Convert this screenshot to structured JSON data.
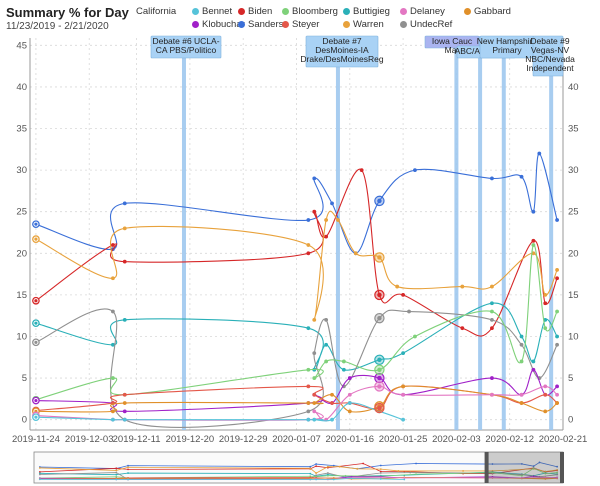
{
  "header": {
    "title": "Summary % for Day",
    "subtitle": "11/23/2019 - 2/21/2020"
  },
  "legend": {
    "title": "California",
    "items": [
      {
        "name": "Bennet",
        "color": "#56c3d9"
      },
      {
        "name": "Biden",
        "color": "#d62728"
      },
      {
        "name": "Bloomberg",
        "color": "#7fd17a"
      },
      {
        "name": "Buttigieg",
        "color": "#2ab0b8"
      },
      {
        "name": "Delaney",
        "color": "#e377c2"
      },
      {
        "name": "Gabbard",
        "color": "#e0902a"
      },
      {
        "name": "Klobuchar",
        "color": "#a020c8"
      },
      {
        "name": "Sanders",
        "color": "#3a6fd8"
      },
      {
        "name": "Steyer",
        "color": "#e4584a"
      },
      {
        "name": "Warren",
        "color": "#e8a23c"
      },
      {
        "name": "UndecRef",
        "color": "#909090"
      }
    ]
  },
  "chart_data": {
    "type": "line",
    "title": "Summary % for Day",
    "subtitle": "11/23/2019 - 2/21/2020",
    "xlabel": "",
    "ylabel": "",
    "x_type": "date",
    "xlim": [
      "2019-11-23",
      "2020-02-21"
    ],
    "ylim": [
      -1,
      46
    ],
    "y_ticks": [
      0,
      5,
      10,
      15,
      20,
      25,
      30,
      35,
      40,
      45
    ],
    "y_ticks_right": [
      0,
      5,
      10,
      15,
      20,
      25,
      30,
      35,
      40
    ],
    "x_ticks": [
      "2019-11-24",
      "2019-12-03",
      "2019-12-11",
      "2019-12-20",
      "2019-12-29",
      "2020-01-07",
      "2020-01-16",
      "2020-01-25",
      "2020-02-03",
      "2020-02-12",
      "2020-02-21"
    ],
    "grid": true,
    "events": [
      {
        "date": "2019-12-19",
        "lines": [
          "Debate #6 UCLA-",
          "CA PBS/Politico"
        ]
      },
      {
        "date": "2020-01-14",
        "lines": [
          "Debate #7",
          "DesMoines-IA",
          "Drake/DesMoinesReg"
        ]
      },
      {
        "date": "2020-02-03",
        "lines": [
          "Iowa Cauc",
          "Mar"
        ]
      },
      {
        "date": "2020-02-07",
        "lines": [
          "ABC/AppleNews"
        ]
      },
      {
        "date": "2020-02-11",
        "lines": [
          "New Hampshire",
          "Primary"
        ]
      },
      {
        "date": "2020-02-19",
        "lines": [
          "Debate #9",
          "Vegas-NV",
          "NBC/Nevada",
          "Independent"
        ]
      }
    ],
    "series": [
      {
        "name": "Sanders",
        "color": "#3a6fd8",
        "points": [
          [
            "2019-11-24",
            23.5
          ],
          [
            "2019-12-07",
            20.5
          ],
          [
            "2019-12-09",
            26
          ],
          [
            "2020-01-09",
            24
          ],
          [
            "2020-01-10",
            29
          ],
          [
            "2020-01-13",
            26
          ],
          [
            "2020-01-17",
            20
          ],
          [
            "2020-01-21",
            26.3
          ],
          [
            "2020-01-27",
            30
          ],
          [
            "2020-02-09",
            29
          ],
          [
            "2020-02-14",
            29.2
          ],
          [
            "2020-02-16",
            25
          ],
          [
            "2020-02-17",
            32
          ],
          [
            "2020-02-20",
            24
          ]
        ]
      },
      {
        "name": "Biden",
        "color": "#d62728",
        "points": [
          [
            "2019-11-24",
            14.3
          ],
          [
            "2019-12-07",
            21
          ],
          [
            "2019-12-09",
            19
          ],
          [
            "2020-01-09",
            20
          ],
          [
            "2020-01-10",
            25
          ],
          [
            "2020-01-12",
            22
          ],
          [
            "2020-01-18",
            30
          ],
          [
            "2020-01-21",
            15
          ],
          [
            "2020-01-25",
            15
          ],
          [
            "2020-02-04",
            11
          ],
          [
            "2020-02-09",
            11
          ],
          [
            "2020-02-16",
            21.5
          ],
          [
            "2020-02-18",
            14
          ],
          [
            "2020-02-20",
            17
          ]
        ]
      },
      {
        "name": "Warren",
        "color": "#e8a23c",
        "points": [
          [
            "2019-11-24",
            21.7
          ],
          [
            "2019-12-07",
            17
          ],
          [
            "2019-12-09",
            23
          ],
          [
            "2020-01-09",
            21
          ],
          [
            "2020-01-10",
            12
          ],
          [
            "2020-01-12",
            24
          ],
          [
            "2020-01-14",
            24
          ],
          [
            "2020-01-17",
            20
          ],
          [
            "2020-01-21",
            19.5
          ],
          [
            "2020-01-24",
            16
          ],
          [
            "2020-02-04",
            16
          ],
          [
            "2020-02-09",
            16
          ],
          [
            "2020-02-16",
            20
          ],
          [
            "2020-02-18",
            15
          ],
          [
            "2020-02-20",
            18
          ]
        ]
      },
      {
        "name": "Buttigieg",
        "color": "#2ab0b8",
        "points": [
          [
            "2019-11-24",
            11.6
          ],
          [
            "2019-12-07",
            9
          ],
          [
            "2019-12-09",
            12
          ],
          [
            "2020-01-09",
            11
          ],
          [
            "2020-01-10",
            6
          ],
          [
            "2020-01-12",
            9
          ],
          [
            "2020-01-15",
            6
          ],
          [
            "2020-01-21",
            7.2
          ],
          [
            "2020-01-25",
            8
          ],
          [
            "2020-02-09",
            14
          ],
          [
            "2020-02-14",
            10
          ],
          [
            "2020-02-16",
            7
          ],
          [
            "2020-02-18",
            12
          ],
          [
            "2020-02-20",
            10
          ]
        ]
      },
      {
        "name": "UndecRef",
        "color": "#909090",
        "points": [
          [
            "2019-11-24",
            9.3
          ],
          [
            "2019-12-07",
            13
          ],
          [
            "2019-12-09",
            0
          ],
          [
            "2020-01-09",
            1
          ],
          [
            "2020-01-10",
            8
          ],
          [
            "2020-01-12",
            12
          ],
          [
            "2020-01-15",
            4
          ],
          [
            "2020-01-21",
            12.2
          ],
          [
            "2020-01-26",
            13
          ],
          [
            "2020-02-09",
            12
          ],
          [
            "2020-02-14",
            9
          ],
          [
            "2020-02-17",
            5
          ],
          [
            "2020-02-20",
            9
          ]
        ]
      },
      {
        "name": "Bloomberg",
        "color": "#7fd17a",
        "points": [
          [
            "2019-11-24",
            2.4
          ],
          [
            "2019-12-07",
            5
          ],
          [
            "2019-12-09",
            3
          ],
          [
            "2020-01-09",
            6
          ],
          [
            "2020-01-10",
            5
          ],
          [
            "2020-01-12",
            7
          ],
          [
            "2020-01-15",
            7
          ],
          [
            "2020-01-21",
            6
          ],
          [
            "2020-01-27",
            10
          ],
          [
            "2020-02-09",
            13
          ],
          [
            "2020-02-14",
            7
          ],
          [
            "2020-02-16",
            21
          ],
          [
            "2020-02-18",
            11
          ],
          [
            "2020-02-20",
            13
          ]
        ]
      },
      {
        "name": "Klobuchar",
        "color": "#a020c8",
        "points": [
          [
            "2019-11-24",
            2.3
          ],
          [
            "2019-12-07",
            2
          ],
          [
            "2019-12-09",
            1
          ],
          [
            "2020-01-09",
            2
          ],
          [
            "2020-01-10",
            3
          ],
          [
            "2020-01-13",
            2
          ],
          [
            "2020-01-16",
            5
          ],
          [
            "2020-01-21",
            5
          ],
          [
            "2020-01-25",
            3
          ],
          [
            "2020-02-09",
            5
          ],
          [
            "2020-02-14",
            3
          ],
          [
            "2020-02-16",
            6
          ],
          [
            "2020-02-18",
            3
          ],
          [
            "2020-02-20",
            4
          ]
        ]
      },
      {
        "name": "Steyer",
        "color": "#e4584a",
        "points": [
          [
            "2019-11-24",
            1.1
          ],
          [
            "2019-12-07",
            2
          ],
          [
            "2019-12-09",
            3
          ],
          [
            "2020-01-09",
            4
          ],
          [
            "2020-01-10",
            3
          ],
          [
            "2020-01-13",
            2
          ],
          [
            "2020-01-16",
            2
          ],
          [
            "2020-01-21",
            1.4
          ],
          [
            "2020-01-25",
            4
          ],
          [
            "2020-02-09",
            3
          ],
          [
            "2020-02-14",
            2
          ],
          [
            "2020-02-18",
            3
          ],
          [
            "2020-02-20",
            2
          ]
        ]
      },
      {
        "name": "Gabbard",
        "color": "#e0902a",
        "points": [
          [
            "2019-11-24",
            1.0
          ],
          [
            "2019-12-07",
            1
          ],
          [
            "2019-12-09",
            2
          ],
          [
            "2020-01-09",
            2
          ],
          [
            "2020-01-10",
            2
          ],
          [
            "2020-01-13",
            3
          ],
          [
            "2020-01-16",
            1
          ],
          [
            "2020-01-21",
            1.6
          ],
          [
            "2020-01-25",
            4
          ],
          [
            "2020-02-09",
            3
          ],
          [
            "2020-02-14",
            2
          ],
          [
            "2020-02-18",
            1
          ],
          [
            "2020-02-20",
            2
          ]
        ]
      },
      {
        "name": "Delaney",
        "color": "#e377c2",
        "points": [
          [
            "2019-11-24",
            0.5
          ],
          [
            "2019-12-07",
            0
          ],
          [
            "2019-12-09",
            0
          ],
          [
            "2020-01-09",
            0
          ],
          [
            "2020-01-10",
            1
          ],
          [
            "2020-01-12",
            0
          ],
          [
            "2020-01-16",
            3
          ],
          [
            "2020-01-21",
            4
          ],
          [
            "2020-01-25",
            3
          ],
          [
            "2020-02-09",
            3
          ],
          [
            "2020-02-14",
            3
          ],
          [
            "2020-02-18",
            4
          ],
          [
            "2020-02-20",
            3
          ]
        ]
      },
      {
        "name": "Bennet",
        "color": "#56c3d9",
        "points": [
          [
            "2019-11-24",
            0.3
          ],
          [
            "2019-12-07",
            0
          ],
          [
            "2019-12-09",
            0
          ],
          [
            "2020-01-09",
            0
          ],
          [
            "2020-01-10",
            0
          ],
          [
            "2020-01-13",
            0
          ],
          [
            "2020-01-16",
            2
          ],
          [
            "2020-01-21",
            1
          ],
          [
            "2020-01-25",
            0
          ]
        ]
      }
    ],
    "highlighted_points": [
      {
        "name": "Sanders",
        "date": "2020-01-21",
        "value": 26.3
      },
      {
        "name": "Warren",
        "date": "2020-01-21",
        "value": 19.5
      },
      {
        "name": "Biden",
        "date": "2020-01-21",
        "value": 15
      },
      {
        "name": "UndecRef",
        "date": "2020-01-21",
        "value": 12.2
      },
      {
        "name": "Buttigieg",
        "date": "2020-01-21",
        "value": 7.2
      },
      {
        "name": "Klobuchar",
        "date": "2020-01-21",
        "value": 5
      },
      {
        "name": "Bloomberg",
        "date": "2020-01-21",
        "value": 6
      },
      {
        "name": "Delaney",
        "date": "2020-01-21",
        "value": 4
      },
      {
        "name": "Gabbard",
        "date": "2020-01-21",
        "value": 1.6
      },
      {
        "name": "Steyer",
        "date": "2020-01-21",
        "value": 1.4
      }
    ],
    "navigator": {
      "selected_range": [
        "2020-02-08",
        "2020-02-21"
      ]
    }
  }
}
